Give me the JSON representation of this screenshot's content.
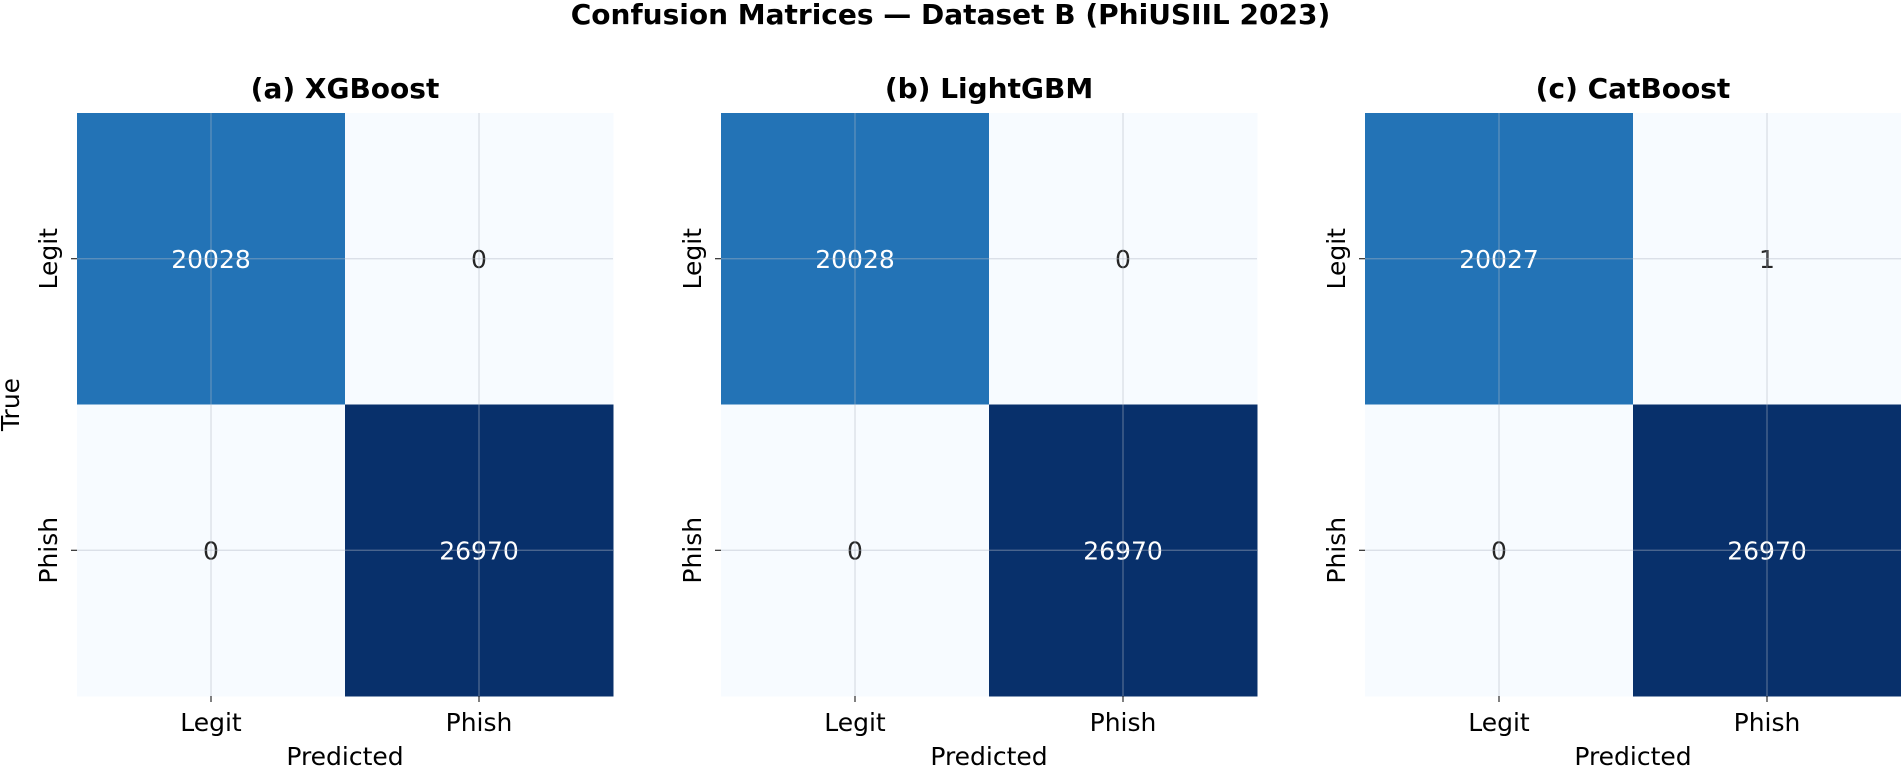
{
  "title": "Confusion Matrices — Dataset B (PhiUSIIL 2023)",
  "chart_data": [
    {
      "type": "heatmap",
      "title": "(a) XGBoost",
      "xlabel": "Predicted",
      "ylabel": "True",
      "x_categories": [
        "Legit",
        "Phish"
      ],
      "y_categories": [
        "Legit",
        "Phish"
      ],
      "values": [
        [
          20028,
          0
        ],
        [
          0,
          26970
        ]
      ],
      "colormap": "Blues",
      "colorbar": false,
      "grid": true
    },
    {
      "type": "heatmap",
      "title": "(b) LightGBM",
      "xlabel": "Predicted",
      "ylabel": "",
      "x_categories": [
        "Legit",
        "Phish"
      ],
      "y_categories": [
        "Legit",
        "Phish"
      ],
      "values": [
        [
          20028,
          0
        ],
        [
          0,
          26970
        ]
      ],
      "colormap": "Blues",
      "colorbar": false,
      "grid": true
    },
    {
      "type": "heatmap",
      "title": "(c) CatBoost",
      "xlabel": "Predicted",
      "ylabel": "",
      "x_categories": [
        "Legit",
        "Phish"
      ],
      "y_categories": [
        "Legit",
        "Phish"
      ],
      "values": [
        [
          20027,
          1
        ],
        [
          0,
          26970
        ]
      ],
      "colormap": "Blues",
      "colorbar": false,
      "grid": true
    }
  ]
}
